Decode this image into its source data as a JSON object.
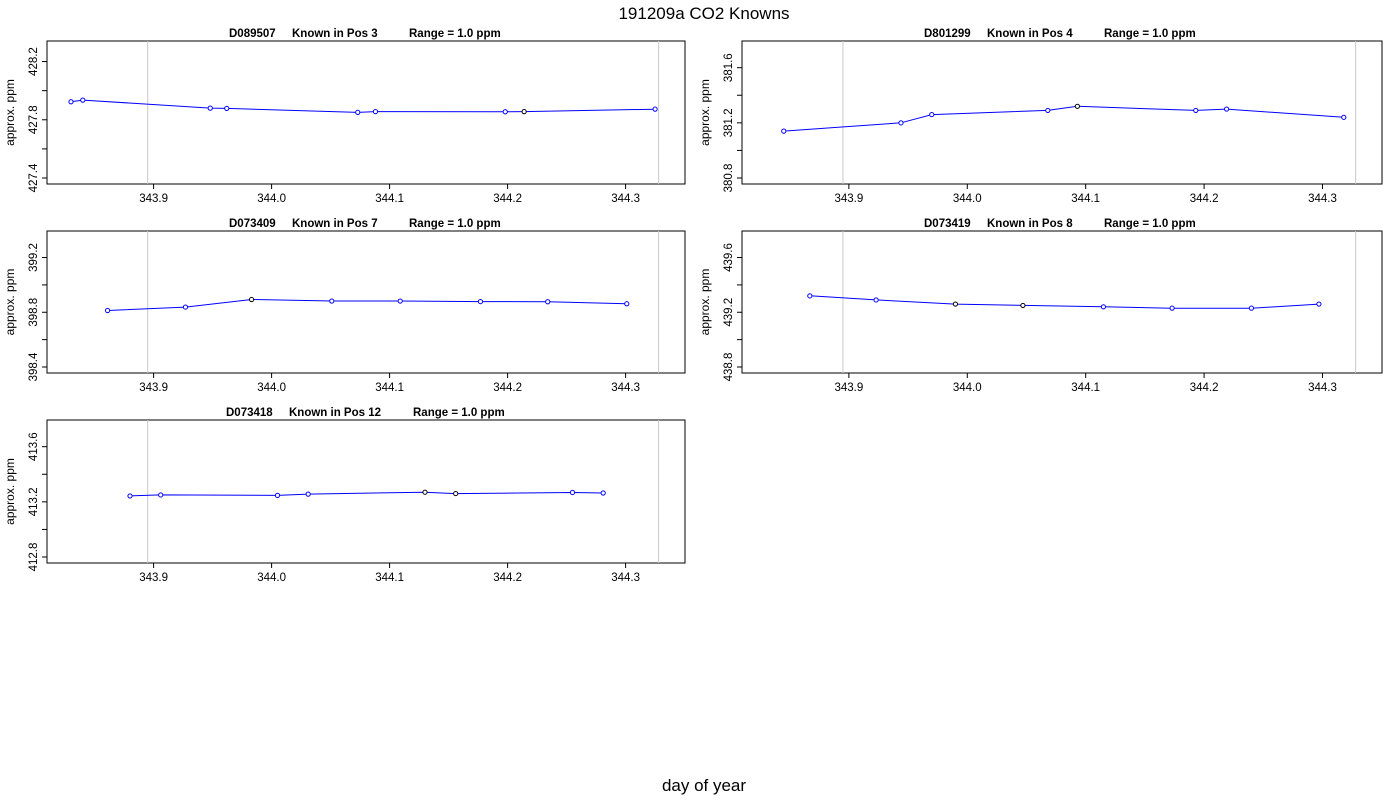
{
  "figure": {
    "title": "191209a   CO2 Knowns",
    "xlabel": "day of year",
    "colors": {
      "line": "#0000ff",
      "point_primary": "#0000ff",
      "point_other": "#000000",
      "vline": "#c8c8c8",
      "frame": "#000000"
    }
  },
  "chart_data": [
    {
      "type": "line",
      "title_parts": [
        "D089507",
        "Known in Pos 3",
        "Range = 1.0 ppm"
      ],
      "xlabel": "",
      "ylabel": "approx. ppm",
      "xlim": [
        343.83,
        344.33
      ],
      "ylim": [
        427.4,
        428.3
      ],
      "xticks": [
        343.9,
        344.0,
        344.1,
        344.2,
        344.3
      ],
      "xtick_labels": [
        "343.9",
        "344.0",
        "344.1",
        "344.2",
        "344.3"
      ],
      "yticks": [
        427.4,
        427.6,
        427.8,
        428.0,
        428.2
      ],
      "ytick_labels": [
        "427.4",
        "",
        "427.8",
        "",
        "428.2"
      ],
      "vlines": [
        343.895,
        344.328
      ],
      "series": [
        {
          "x": [
            343.83,
            343.84,
            343.948,
            343.962,
            344.073,
            344.088,
            344.198,
            344.214,
            344.325
          ],
          "y": [
            427.924,
            427.935,
            427.88,
            427.878,
            427.851,
            427.856,
            427.855,
            427.856,
            427.873
          ],
          "point_color": [
            "primary",
            "primary",
            "primary",
            "primary",
            "primary",
            "primary",
            "primary",
            "other",
            "primary"
          ]
        }
      ]
    },
    {
      "type": "line",
      "title_parts": [
        "D801299",
        "Known in Pos 4",
        "Range = 1.0 ppm"
      ],
      "xlabel": "",
      "ylabel": "approx. ppm",
      "xlim": [
        343.83,
        344.33
      ],
      "ylim": [
        380.8,
        381.75
      ],
      "xticks": [
        343.9,
        344.0,
        344.1,
        344.2,
        344.3
      ],
      "xtick_labels": [
        "343.9",
        "344.0",
        "344.1",
        "344.2",
        "344.3"
      ],
      "yticks": [
        380.8,
        381.0,
        381.2,
        381.4,
        381.6
      ],
      "ytick_labels": [
        "380.8",
        "",
        "381.2",
        "",
        "381.6"
      ],
      "vlines": [
        343.895,
        344.328
      ],
      "series": [
        {
          "x": [
            343.845,
            343.944,
            343.97,
            344.068,
            344.093,
            344.193,
            344.219,
            344.318
          ],
          "y": [
            381.14,
            381.2,
            381.26,
            381.29,
            381.32,
            381.29,
            381.3,
            381.24
          ],
          "point_color": [
            "primary",
            "primary",
            "primary",
            "primary",
            "other",
            "primary",
            "primary",
            "primary"
          ]
        }
      ]
    },
    {
      "type": "line",
      "title_parts": [
        "D073409",
        "Known in Pos 7",
        "Range = 1.0 ppm"
      ],
      "xlabel": "",
      "ylabel": "approx. ppm",
      "xlim": [
        343.83,
        344.33
      ],
      "ylim": [
        398.4,
        399.35
      ],
      "xticks": [
        343.9,
        344.0,
        344.1,
        344.2,
        344.3
      ],
      "xtick_labels": [
        "343.9",
        "344.0",
        "344.1",
        "344.2",
        "344.3"
      ],
      "yticks": [
        398.4,
        398.6,
        398.8,
        399.0,
        399.2
      ],
      "ytick_labels": [
        "398.4",
        "",
        "398.8",
        "",
        "399.2"
      ],
      "vlines": [
        343.895,
        344.328
      ],
      "series": [
        {
          "x": [
            343.861,
            343.927,
            343.983,
            344.051,
            344.109,
            344.177,
            344.234,
            344.301
          ],
          "y": [
            398.813,
            398.838,
            398.893,
            398.882,
            398.882,
            398.878,
            398.877,
            398.862
          ],
          "point_color": [
            "primary",
            "primary",
            "other",
            "primary",
            "primary",
            "primary",
            "primary",
            "primary"
          ]
        }
      ]
    },
    {
      "type": "line",
      "title_parts": [
        "D073419",
        "Known in Pos 8",
        "Range = 1.0 ppm"
      ],
      "xlabel": "",
      "ylabel": "approx. ppm",
      "xlim": [
        343.83,
        344.33
      ],
      "ylim": [
        438.8,
        439.75
      ],
      "xticks": [
        343.9,
        344.0,
        344.1,
        344.2,
        344.3
      ],
      "xtick_labels": [
        "343.9",
        "344.0",
        "344.1",
        "344.2",
        "344.3"
      ],
      "yticks": [
        438.8,
        439.0,
        439.2,
        439.4,
        439.6
      ],
      "ytick_labels": [
        "438.8",
        "",
        "439.2",
        "",
        "439.6"
      ],
      "vlines": [
        343.895,
        344.328
      ],
      "series": [
        {
          "x": [
            343.867,
            343.923,
            343.99,
            344.047,
            344.115,
            344.173,
            344.24,
            344.297
          ],
          "y": [
            439.32,
            439.29,
            439.26,
            439.25,
            439.24,
            439.23,
            439.23,
            439.26
          ],
          "point_color": [
            "primary",
            "primary",
            "other",
            "other",
            "primary",
            "primary",
            "primary",
            "primary"
          ]
        }
      ]
    },
    {
      "type": "line",
      "title_parts": [
        "D073418",
        "Known in Pos 12",
        "Range = 1.0 ppm"
      ],
      "xlabel": "",
      "ylabel": "approx. ppm",
      "xlim": [
        343.83,
        344.33
      ],
      "ylim": [
        412.8,
        413.75
      ],
      "xticks": [
        343.9,
        344.0,
        344.1,
        344.2,
        344.3
      ],
      "xtick_labels": [
        "343.9",
        "344.0",
        "344.1",
        "344.2",
        "344.3"
      ],
      "yticks": [
        412.8,
        413.0,
        413.2,
        413.4,
        413.6
      ],
      "ytick_labels": [
        "412.8",
        "",
        "413.2",
        "",
        "413.6"
      ],
      "vlines": [
        343.895,
        344.328
      ],
      "series": [
        {
          "x": [
            343.88,
            343.906,
            344.005,
            344.031,
            344.13,
            344.156,
            344.255,
            344.281
          ],
          "y": [
            413.243,
            413.25,
            413.247,
            413.256,
            413.27,
            413.26,
            413.268,
            413.264
          ],
          "point_color": [
            "primary",
            "primary",
            "primary",
            "primary",
            "other",
            "other",
            "primary",
            "primary"
          ]
        }
      ]
    }
  ]
}
